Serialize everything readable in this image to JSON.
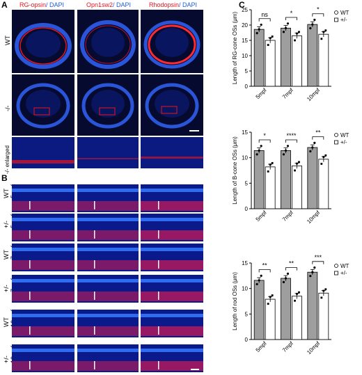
{
  "panel_labels": {
    "a": "A",
    "b": "B",
    "c": "C"
  },
  "panel_a": {
    "headers": [
      {
        "marker": "RG-opsin",
        "sep": "/ ",
        "dapi": "DAPI"
      },
      {
        "marker": "Opn1sw2",
        "sep": "/ ",
        "dapi": "DAPI"
      },
      {
        "marker": "Rhodopsin",
        "sep": "/ ",
        "dapi": "DAPI"
      }
    ],
    "rows": [
      "WT",
      "-/-",
      "-/- enlarged"
    ]
  },
  "panel_b": {
    "rows": [
      {
        "genotype": "WT",
        "age": "5mpf"
      },
      {
        "genotype": "+/-",
        "age": "5mpf"
      },
      {
        "genotype": "WT",
        "age": "7mpf"
      },
      {
        "genotype": "+/-",
        "age": "7mpf"
      },
      {
        "genotype": "WT",
        "age": "10mpf"
      },
      {
        "genotype": "+/-",
        "age": "10mpf"
      }
    ]
  },
  "colors": {
    "bar_wt": "#9e9e9e",
    "bar_het": "#ffffff",
    "stain_red": "#e8141e",
    "stain_blue": "#1f5fd8"
  },
  "chart_data": [
    {
      "type": "bar",
      "categories": [
        "5mpf",
        "7mpf",
        "10mpf"
      ],
      "ylabel": "Length of RG-cone OSs (μm)",
      "ylim": [
        0,
        25
      ],
      "yticks": [
        0,
        5,
        10,
        15,
        20,
        25
      ],
      "legend": [
        "WT",
        "+/-"
      ],
      "legend_position": "top-right",
      "series": [
        {
          "name": "WT",
          "values": [
            18.6,
            19.0,
            20.2
          ]
        },
        {
          "name": "+/-",
          "values": [
            15.0,
            16.5,
            17.0
          ]
        }
      ],
      "significance": [
        "ns",
        "*",
        "*"
      ]
    },
    {
      "type": "bar",
      "categories": [
        "5mpf",
        "7mpf",
        "10mpf"
      ],
      "ylabel": "Length of B-cone OSs (μm)",
      "ylim": [
        0,
        15
      ],
      "yticks": [
        0,
        5,
        10,
        15
      ],
      "legend": [
        "WT",
        "+/-"
      ],
      "legend_position": "top-right",
      "series": [
        {
          "name": "WT",
          "values": [
            11.4,
            11.4,
            12.0
          ]
        },
        {
          "name": "+/-",
          "values": [
            8.2,
            8.4,
            9.7
          ]
        }
      ],
      "significance": [
        "*",
        "****",
        "**"
      ]
    },
    {
      "type": "bar",
      "categories": [
        "5mpf",
        "7mpf",
        "10mpf"
      ],
      "ylabel": "Length of rod OSs (μm)",
      "ylim": [
        0,
        15
      ],
      "yticks": [
        0,
        5,
        10,
        15
      ],
      "legend": [
        "WT",
        "+/-"
      ],
      "legend_position": "top-right",
      "series": [
        {
          "name": "WT",
          "values": [
            11.6,
            12.0,
            13.2
          ]
        },
        {
          "name": "+/-",
          "values": [
            7.9,
            8.5,
            9.1
          ]
        }
      ],
      "significance": [
        "**",
        "**",
        "***"
      ]
    }
  ]
}
